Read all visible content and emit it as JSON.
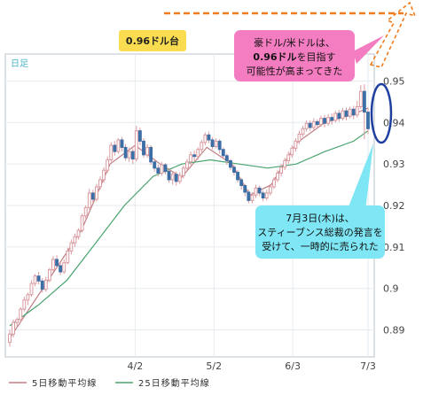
{
  "chart_data": {
    "type": "candlestick",
    "period_label": "日足",
    "x_tick_labels": [
      "4/2",
      "5/2",
      "6/3",
      "7/3"
    ],
    "x_tick_positions": [
      35,
      57,
      79,
      100
    ],
    "y_ticks": [
      "0.95",
      "0.94",
      "0.93",
      "0.92",
      "0.91",
      "0.9",
      "0.89"
    ],
    "y_tick_values": [
      0.95,
      0.94,
      0.93,
      0.92,
      0.91,
      0.9,
      0.89
    ],
    "ylim": [
      0.8835,
      0.9565
    ],
    "candles": [
      [
        0.887,
        0.889,
        0.886,
        0.89
      ],
      [
        0.889,
        0.8918,
        0.8882,
        0.8925
      ],
      [
        0.8918,
        0.8925,
        0.8905,
        0.893
      ],
      [
        0.8925,
        0.895,
        0.8918,
        0.8955
      ],
      [
        0.895,
        0.8972,
        0.8945,
        0.898
      ],
      [
        0.8972,
        0.8985,
        0.896,
        0.899
      ],
      [
        0.8985,
        0.9012,
        0.898,
        0.902
      ],
      [
        0.9012,
        0.903,
        0.9005,
        0.9035
      ],
      [
        0.903,
        0.9018,
        0.901,
        0.904
      ],
      [
        0.9018,
        0.8998,
        0.899,
        0.9025
      ],
      [
        0.8998,
        0.902,
        0.8992,
        0.9028
      ],
      [
        0.902,
        0.9045,
        0.9015,
        0.905
      ],
      [
        0.9045,
        0.907,
        0.904,
        0.9078
      ],
      [
        0.907,
        0.9055,
        0.9048,
        0.908
      ],
      [
        0.9055,
        0.904,
        0.9032,
        0.9062
      ],
      [
        0.904,
        0.9062,
        0.9035,
        0.907
      ],
      [
        0.9062,
        0.909,
        0.9058,
        0.9098
      ],
      [
        0.909,
        0.911,
        0.9082,
        0.9118
      ],
      [
        0.911,
        0.9125,
        0.91,
        0.9132
      ],
      [
        0.9125,
        0.914,
        0.9118,
        0.9145
      ],
      [
        0.914,
        0.9175,
        0.9135,
        0.918
      ],
      [
        0.9175,
        0.9195,
        0.9168,
        0.92
      ],
      [
        0.9195,
        0.923,
        0.919,
        0.924
      ],
      [
        0.923,
        0.9215,
        0.9205,
        0.9238
      ],
      [
        0.9215,
        0.9245,
        0.921,
        0.9252
      ],
      [
        0.9245,
        0.9262,
        0.9238,
        0.927
      ],
      [
        0.9262,
        0.9285,
        0.9255,
        0.9292
      ],
      [
        0.9285,
        0.931,
        0.9278,
        0.9318
      ],
      [
        0.931,
        0.9345,
        0.9305,
        0.9352
      ],
      [
        0.9345,
        0.933,
        0.932,
        0.9355
      ],
      [
        0.933,
        0.9358,
        0.9325,
        0.9362
      ],
      [
        0.9358,
        0.934,
        0.933,
        0.9365
      ],
      [
        0.934,
        0.9315,
        0.9308,
        0.9348
      ],
      [
        0.9315,
        0.933,
        0.9305,
        0.934
      ],
      [
        0.933,
        0.9312,
        0.93,
        0.9338
      ],
      [
        0.9312,
        0.938,
        0.9305,
        0.9392
      ],
      [
        0.938,
        0.9355,
        0.9345,
        0.9388
      ],
      [
        0.9355,
        0.9322,
        0.9315,
        0.9362
      ],
      [
        0.9322,
        0.934,
        0.9315,
        0.9348
      ],
      [
        0.934,
        0.9305,
        0.9298,
        0.9345
      ],
      [
        0.9305,
        0.929,
        0.9282,
        0.9312
      ],
      [
        0.929,
        0.9278,
        0.927,
        0.9298
      ],
      [
        0.9278,
        0.9298,
        0.9272,
        0.9305
      ],
      [
        0.9298,
        0.9282,
        0.9275,
        0.9302
      ],
      [
        0.9282,
        0.9262,
        0.9255,
        0.929
      ],
      [
        0.9262,
        0.9275,
        0.925,
        0.9282
      ],
      [
        0.9275,
        0.9258,
        0.9248,
        0.9282
      ],
      [
        0.9258,
        0.9272,
        0.9252,
        0.928
      ],
      [
        0.9272,
        0.929,
        0.9265,
        0.9296
      ],
      [
        0.929,
        0.9305,
        0.9284,
        0.9312
      ],
      [
        0.9305,
        0.9322,
        0.9298,
        0.933
      ],
      [
        0.9322,
        0.9318,
        0.9305,
        0.9332
      ],
      [
        0.9318,
        0.9335,
        0.931,
        0.934
      ],
      [
        0.9335,
        0.9352,
        0.9328,
        0.9358
      ],
      [
        0.9352,
        0.937,
        0.9345,
        0.9376
      ],
      [
        0.937,
        0.9358,
        0.935,
        0.9378
      ],
      [
        0.9358,
        0.9342,
        0.9335,
        0.9364
      ],
      [
        0.9342,
        0.9355,
        0.9338,
        0.9362
      ],
      [
        0.9355,
        0.9335,
        0.9325,
        0.936
      ],
      [
        0.9335,
        0.932,
        0.9312,
        0.934
      ],
      [
        0.932,
        0.9308,
        0.9298,
        0.9325
      ],
      [
        0.9308,
        0.9292,
        0.9285,
        0.9312
      ],
      [
        0.9292,
        0.928,
        0.9272,
        0.9298
      ],
      [
        0.928,
        0.9262,
        0.9255,
        0.9285
      ],
      [
        0.9262,
        0.9248,
        0.9238,
        0.9266
      ],
      [
        0.9248,
        0.9232,
        0.9222,
        0.9252
      ],
      [
        0.9232,
        0.9212,
        0.9205,
        0.9238
      ],
      [
        0.9212,
        0.9225,
        0.9205,
        0.9232
      ],
      [
        0.9225,
        0.9242,
        0.9218,
        0.925
      ],
      [
        0.9242,
        0.923,
        0.9222,
        0.9248
      ],
      [
        0.923,
        0.9218,
        0.921,
        0.9236
      ],
      [
        0.9218,
        0.923,
        0.9212,
        0.9238
      ],
      [
        0.923,
        0.9245,
        0.9224,
        0.9252
      ],
      [
        0.9245,
        0.9262,
        0.924,
        0.9268
      ],
      [
        0.9262,
        0.9278,
        0.9256,
        0.9285
      ],
      [
        0.9278,
        0.9292,
        0.927,
        0.93
      ],
      [
        0.9292,
        0.9308,
        0.9285,
        0.9315
      ],
      [
        0.9308,
        0.9322,
        0.93,
        0.933
      ],
      [
        0.9322,
        0.9338,
        0.9315,
        0.9345
      ],
      [
        0.9338,
        0.9355,
        0.933,
        0.9362
      ],
      [
        0.9355,
        0.9372,
        0.9348,
        0.938
      ],
      [
        0.9372,
        0.9385,
        0.9365,
        0.9392
      ],
      [
        0.9385,
        0.9398,
        0.9378,
        0.9405
      ],
      [
        0.9398,
        0.9388,
        0.938,
        0.9405
      ],
      [
        0.9388,
        0.9402,
        0.9382,
        0.941
      ],
      [
        0.9402,
        0.9395,
        0.9386,
        0.9408
      ],
      [
        0.9395,
        0.941,
        0.939,
        0.9416
      ],
      [
        0.941,
        0.9398,
        0.9388,
        0.9418
      ],
      [
        0.9398,
        0.9412,
        0.9392,
        0.942
      ],
      [
        0.9412,
        0.9405,
        0.9395,
        0.9422
      ],
      [
        0.9405,
        0.9422,
        0.94,
        0.9428
      ],
      [
        0.9422,
        0.941,
        0.9402,
        0.943
      ],
      [
        0.941,
        0.9428,
        0.9405,
        0.9435
      ],
      [
        0.9428,
        0.9415,
        0.9405,
        0.9436
      ],
      [
        0.9415,
        0.9432,
        0.941,
        0.9438
      ],
      [
        0.9432,
        0.9418,
        0.9408,
        0.944
      ],
      [
        0.9418,
        0.9438,
        0.9412,
        0.9452
      ],
      [
        0.9438,
        0.9475,
        0.9432,
        0.949
      ],
      [
        0.9475,
        0.9425,
        0.936,
        0.9492
      ],
      [
        0.9425,
        0.9385,
        0.9372,
        0.9436
      ]
    ],
    "ma_series": [
      {
        "name": "5日移動平均線",
        "color": "#c07f85",
        "points": [
          [
            0,
            0.888
          ],
          [
            10,
            0.901
          ],
          [
            20,
            0.914
          ],
          [
            28,
            0.93
          ],
          [
            35,
            0.9345
          ],
          [
            42,
            0.93
          ],
          [
            48,
            0.9268
          ],
          [
            55,
            0.934
          ],
          [
            62,
            0.93
          ],
          [
            67,
            0.9225
          ],
          [
            73,
            0.925
          ],
          [
            80,
            0.935
          ],
          [
            88,
            0.94
          ],
          [
            96,
            0.942
          ],
          [
            100,
            0.9435
          ]
        ]
      },
      {
        "name": "25日移動平均線",
        "color": "#48a46f",
        "points": [
          [
            0,
            0.891
          ],
          [
            8,
            0.896
          ],
          [
            16,
            0.902
          ],
          [
            24,
            0.911
          ],
          [
            32,
            0.92
          ],
          [
            40,
            0.927
          ],
          [
            48,
            0.93
          ],
          [
            56,
            0.931
          ],
          [
            64,
            0.93
          ],
          [
            72,
            0.929
          ],
          [
            80,
            0.93
          ],
          [
            88,
            0.933
          ],
          [
            96,
            0.9355
          ],
          [
            100,
            0.938
          ]
        ]
      }
    ]
  },
  "annotations": {
    "level_label": "0.96ドル台",
    "forecast_lines": [
      "豪ドル/米ドルは、",
      "0.96ドル",
      "を目指す",
      "可能性が高まってきた"
    ],
    "event_lines": [
      "7月3日(木)は、",
      "スティーブンス総裁の発言を",
      "受けて、一時的に売られた"
    ]
  },
  "colors": {
    "bull": "#ffffff",
    "bear": "#3c6fa5",
    "wick": "#d99aa0",
    "level_line": "#f07c1e",
    "ann_yellow": "#f9dc4f",
    "ann_pink": "#f47cc0",
    "ann_cyan": "#7ee6f4",
    "highlight": "#1e3fa0"
  }
}
